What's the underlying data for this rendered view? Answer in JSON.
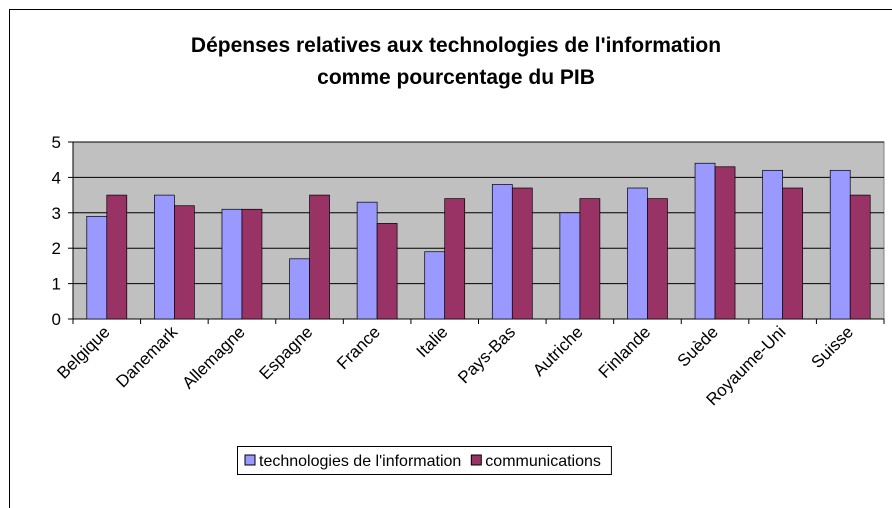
{
  "chart_data": {
    "type": "bar",
    "title": [
      "Dépenses relatives aux technologies de l'information",
      "comme pourcentage du PIB"
    ],
    "categories": [
      "Belgique",
      "Danemark",
      "Allemagne",
      "Espagne",
      "France",
      "Italie",
      "Pays-Bas",
      "Autriche",
      "Finlande",
      "Suède",
      "Royaume-Uni",
      "Suisse"
    ],
    "series": [
      {
        "name": "technologies de l'information",
        "color": "#9999ff",
        "values": [
          2.9,
          3.5,
          3.1,
          1.7,
          3.3,
          1.9,
          3.8,
          3.0,
          3.7,
          4.4,
          4.2,
          4.2
        ]
      },
      {
        "name": "communications",
        "color": "#993366",
        "values": [
          3.5,
          3.2,
          3.1,
          3.5,
          2.7,
          3.4,
          3.7,
          3.4,
          3.4,
          4.3,
          3.7,
          3.5
        ]
      }
    ],
    "ylim": [
      0,
      5
    ],
    "yticks": [
      0,
      1,
      2,
      3,
      4,
      5
    ],
    "grid": true,
    "legend": "bottom"
  }
}
